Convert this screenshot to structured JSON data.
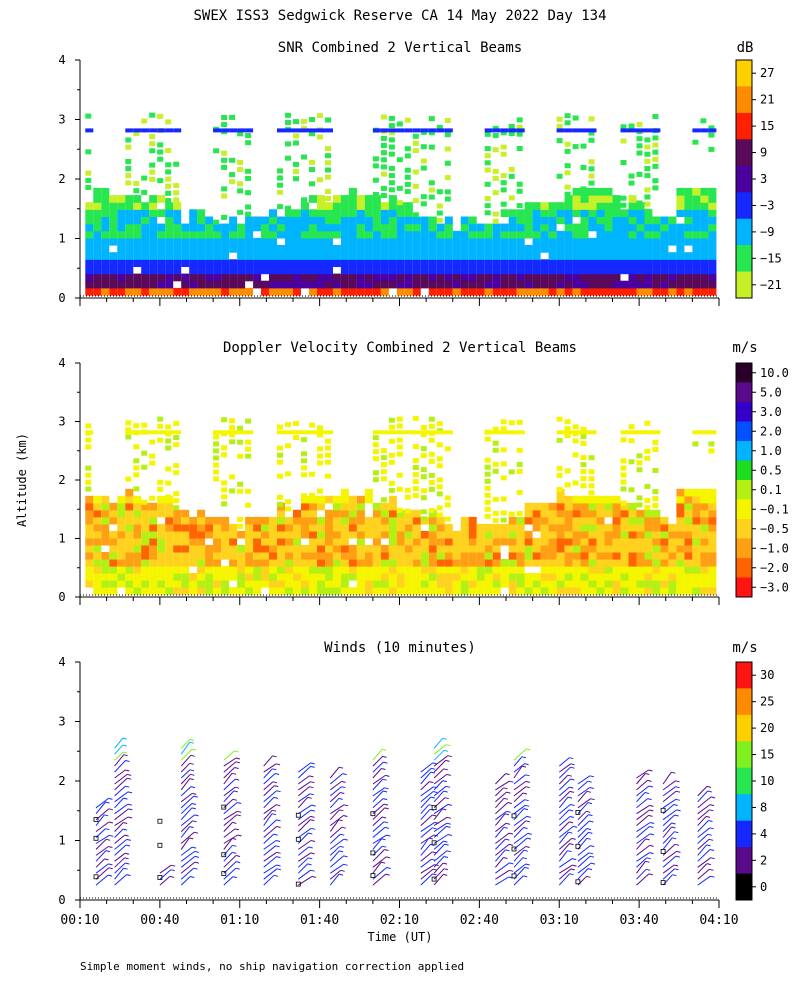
{
  "figure": {
    "title": "SWEX ISS3 Sedgwick Reserve CA  14 May 2022 Day 134",
    "ylabel": "Altitude (km)",
    "xlabel": "Time (UT)",
    "footnote": "Simple moment winds, no ship navigation correction applied"
  },
  "chart_data": [
    {
      "type": "heatmap",
      "title": "SNR Combined 2 Vertical Beams",
      "colorbar_unit": "dB",
      "colorbar_labels": [
        "27",
        "21",
        "15",
        "9",
        "3",
        "−3",
        "−9",
        "−15",
        "−21"
      ],
      "colorbar_colors": [
        "#ffd000",
        "#ff8c00",
        "#ff2000",
        "#5a0a5a",
        "#4b00a0",
        "#1428ff",
        "#00b4ff",
        "#28e650",
        "#c8f028"
      ],
      "x_ticks": [
        "00:10",
        "00:40",
        "01:10",
        "01:40",
        "02:10",
        "02:40",
        "03:10",
        "03:40",
        "04:10"
      ],
      "y_ticks": [
        "0",
        "1",
        "2",
        "3",
        "4"
      ],
      "ylim": [
        0,
        4
      ],
      "xlim_minutes": [
        10,
        250
      ]
    },
    {
      "type": "heatmap",
      "title": "Doppler Velocity Combined 2 Vertical Beams",
      "colorbar_unit": "m/s",
      "colorbar_labels": [
        "10.0",
        "5.0",
        "3.0",
        "2.0",
        "1.0",
        "0.5",
        "0.1",
        "−0.1",
        "−0.5",
        "−1.0",
        "−2.0",
        "−3.0"
      ],
      "colorbar_colors": [
        "#280028",
        "#5a0a8c",
        "#3200c8",
        "#0050ff",
        "#00b4ff",
        "#1edc1e",
        "#b4f014",
        "#f5f500",
        "#ffd21e",
        "#ffa014",
        "#ff6400",
        "#ff1414"
      ],
      "x_ticks": [
        "00:10",
        "00:40",
        "01:10",
        "01:40",
        "02:10",
        "02:40",
        "03:10",
        "03:40",
        "04:10"
      ],
      "y_ticks": [
        "0",
        "1",
        "2",
        "3",
        "4"
      ],
      "ylim": [
        0,
        4
      ],
      "xlim_minutes": [
        10,
        250
      ]
    },
    {
      "type": "scatter",
      "title": "Winds (10 minutes)",
      "colorbar_unit": "m/s",
      "colorbar_labels": [
        "30",
        "25",
        "20",
        "15",
        "10",
        "8",
        "4",
        "2",
        "0"
      ],
      "colorbar_colors": [
        "#ff1414",
        "#ff8c00",
        "#ffd000",
        "#80f020",
        "#28e650",
        "#00b4ff",
        "#1428ff",
        "#5a0a8c",
        "#000000"
      ],
      "x_ticks": [
        "00:10",
        "00:40",
        "01:10",
        "01:40",
        "02:10",
        "02:40",
        "03:10",
        "03:40",
        "04:10"
      ],
      "y_ticks": [
        "0",
        "1",
        "2",
        "3",
        "4"
      ],
      "ylim": [
        0,
        4
      ],
      "xlim_minutes": [
        10,
        250
      ],
      "profile_times_minutes": [
        16,
        23,
        40,
        48,
        64,
        79,
        92,
        104,
        120,
        138,
        143,
        166,
        173,
        190,
        197,
        219,
        229,
        242
      ],
      "max_height_km": [
        1.6,
        2.6,
        0.5,
        2.6,
        2.4,
        2.3,
        2.2,
        2.1,
        2.4,
        2.2,
        2.6,
        2.0,
        2.4,
        2.3,
        2.0,
        2.1,
        2.0,
        1.8
      ]
    }
  ]
}
